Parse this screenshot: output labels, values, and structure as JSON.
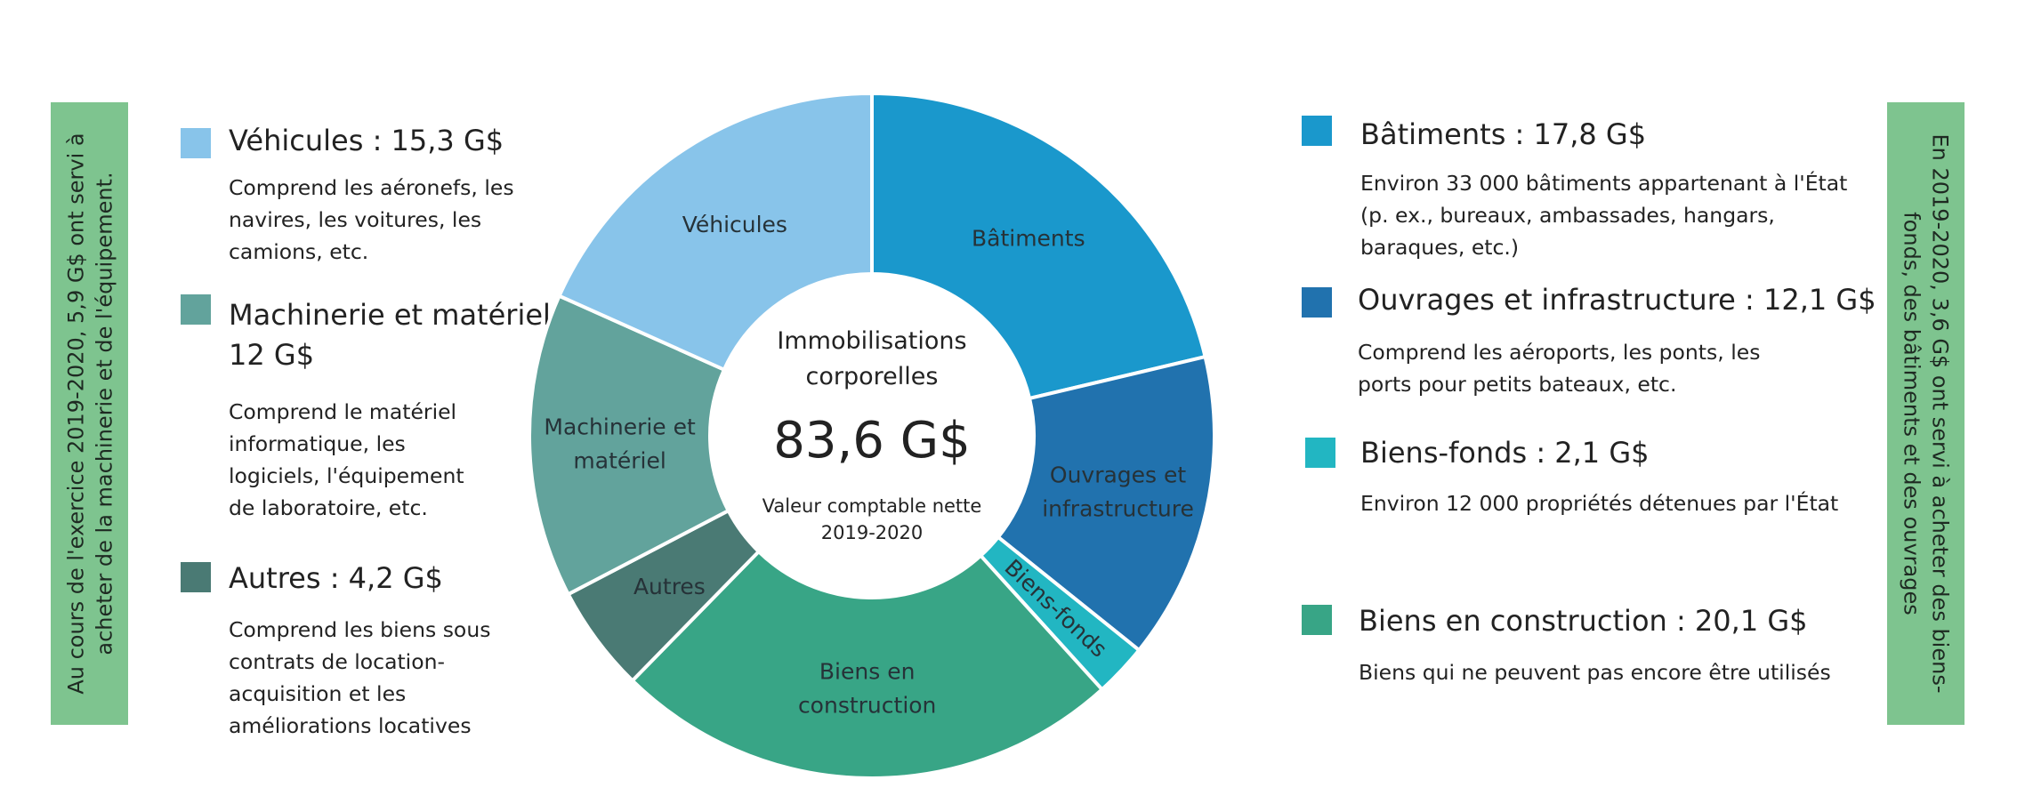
{
  "side_notes": {
    "left": "Au cours de l'exercice 2019-2020, 5,9 G$ ont servi à acheter de la machinerie et de l'équipement.",
    "right": "En 2019-2020, 3,6 G$ ont servi à acheter des biens-fonds, des bâtiments et des ouvrages"
  },
  "legend": {
    "vehicules": {
      "title": "Véhicules : 15,3 G$",
      "desc": "Comprend les aéronefs, les navires, les voitures, les camions, etc."
    },
    "machinerie": {
      "title": "Machinerie et matériel",
      "title2": "12 G$",
      "desc": "Comprend le matériel informatique, les logiciels, l'équipement de laboratoire, etc."
    },
    "autres": {
      "title": "Autres : 4,2 G$",
      "desc": "Comprend les biens sous contrats de location-acquisition et les améliorations locatives"
    },
    "batiments": {
      "title": "Bâtiments : 17,8 G$",
      "desc": "Environ 33 000 bâtiments appartenant à l'État (p. ex., bureaux, ambassades, hangars, baraques, etc.)"
    },
    "ouvrages": {
      "title": "Ouvrages et infrastructure : 12,1 G$",
      "desc": "Comprend les aéroports, les ponts, les ports pour petits bateaux, etc."
    },
    "biensfonds": {
      "title": "Biens-fonds : 2,1 G$",
      "desc": "Environ 12 000 propriétés détenues par l'État"
    },
    "construction": {
      "title": "Biens en construction : 20,1 G$",
      "desc": "Biens qui ne peuvent pas encore être utilisés"
    }
  },
  "chart_data": {
    "type": "pie",
    "donut": true,
    "unit": "G$",
    "center": {
      "title_line1": "Immobilisations",
      "title_line2": "corporelles",
      "total": "83,6 G$",
      "subtitle_line1": "Valeur comptable nette",
      "subtitle_line2": "2019-2020"
    },
    "slices": [
      {
        "key": "batiments",
        "label": [
          "Bâtiments"
        ],
        "value": 17.8,
        "color": "#1a98cc"
      },
      {
        "key": "ouvrages",
        "label": [
          "Ouvrages et",
          "infrastructure"
        ],
        "value": 12.1,
        "color": "#2172ae"
      },
      {
        "key": "biensfonds",
        "label": [
          "Biens-fonds"
        ],
        "value": 2.1,
        "color": "#22b6c2"
      },
      {
        "key": "construction",
        "label": [
          "Biens en",
          "construction"
        ],
        "value": 20.1,
        "color": "#38a586"
      },
      {
        "key": "autres",
        "label": [
          "Autres"
        ],
        "value": 4.2,
        "color": "#4a7a74"
      },
      {
        "key": "machinerie",
        "label": [
          "Machinerie et",
          "matériel"
        ],
        "value": 12,
        "color": "#62a39c"
      },
      {
        "key": "vehicules",
        "label": [
          "Véhicules"
        ],
        "value": 15.3,
        "color": "#88c4ea"
      }
    ]
  }
}
